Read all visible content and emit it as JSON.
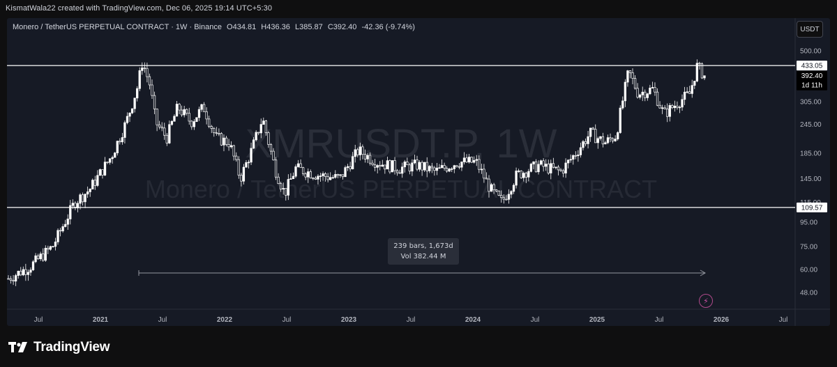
{
  "credit": "KismatWala22 created with TradingView.com, Dec 06, 2025 19:14 UTC+5:30",
  "header": {
    "symbol_desc": "Monero / TetherUS PERPETUAL CONTRACT · 1W · Binance",
    "o_label": "O",
    "open": "434.81",
    "h_label": "H",
    "high": "436.36",
    "l_label": "L",
    "low": "385.87",
    "c_label": "C",
    "close": "392.40",
    "change": "-42.36 (-9.74%)"
  },
  "currency_button": "USDT",
  "watermark": {
    "symbol": "XMRUSDT.P, 1W",
    "description": "Monero / TetherUS PERPETUAL CONTRACT"
  },
  "measure_tooltip": {
    "bars": "239 bars, 1,673d",
    "volume": "Vol 382.44 M"
  },
  "footer_brand": "TradingView",
  "colors": {
    "background": "#161a25",
    "candle": "#ffffff",
    "axis_text": "#b2b5be",
    "accent_bolt": "#d152a8"
  },
  "chart_data": {
    "type": "candlestick",
    "scale": "log",
    "ylim": [
      42,
      560
    ],
    "y_ticks": [
      {
        "label": "500.00",
        "value": 500
      },
      {
        "label": "305.00",
        "value": 305
      },
      {
        "label": "245.00",
        "value": 245
      },
      {
        "label": "185.00",
        "value": 185
      },
      {
        "label": "145.00",
        "value": 145
      },
      {
        "label": "115.00",
        "value": 115
      },
      {
        "label": "95.00",
        "value": 95
      },
      {
        "label": "75.00",
        "value": 75
      },
      {
        "label": "60.00",
        "value": 60
      },
      {
        "label": "48.00",
        "value": 48
      }
    ],
    "x_ticks": [
      {
        "label": "Jul",
        "bold": false
      },
      {
        "label": "2021",
        "bold": true
      },
      {
        "label": "Jul",
        "bold": false
      },
      {
        "label": "2022",
        "bold": true
      },
      {
        "label": "Jul",
        "bold": false
      },
      {
        "label": "2023",
        "bold": true
      },
      {
        "label": "Jul",
        "bold": false
      },
      {
        "label": "2024",
        "bold": true
      },
      {
        "label": "Jul",
        "bold": false
      },
      {
        "label": "2025",
        "bold": true
      },
      {
        "label": "Jul",
        "bold": false
      },
      {
        "label": "2026",
        "bold": true
      },
      {
        "label": "Jul",
        "bold": false
      }
    ],
    "horizontal_levels": [
      {
        "label": "433.05",
        "value": 433.05
      },
      {
        "label": "109.57",
        "value": 109.57
      }
    ],
    "last_price": {
      "label": "392.40",
      "value": 392.4,
      "countdown": "1d 11h"
    },
    "price_path_anchors": [
      {
        "t": 0.0,
        "p": 55
      },
      {
        "t": 0.03,
        "p": 62
      },
      {
        "t": 0.06,
        "p": 75
      },
      {
        "t": 0.09,
        "p": 115
      },
      {
        "t": 0.11,
        "p": 130
      },
      {
        "t": 0.14,
        "p": 180
      },
      {
        "t": 0.16,
        "p": 250
      },
      {
        "t": 0.175,
        "p": 350
      },
      {
        "t": 0.182,
        "p": 450
      },
      {
        "t": 0.192,
        "p": 360
      },
      {
        "t": 0.2,
        "p": 250
      },
      {
        "t": 0.215,
        "p": 215
      },
      {
        "t": 0.23,
        "p": 290
      },
      {
        "t": 0.248,
        "p": 250
      },
      {
        "t": 0.265,
        "p": 290
      },
      {
        "t": 0.282,
        "p": 215
      },
      {
        "t": 0.3,
        "p": 205
      },
      {
        "t": 0.315,
        "p": 145
      },
      {
        "t": 0.33,
        "p": 190
      },
      {
        "t": 0.345,
        "p": 260
      },
      {
        "t": 0.362,
        "p": 160
      },
      {
        "t": 0.375,
        "p": 125
      },
      {
        "t": 0.39,
        "p": 160
      },
      {
        "t": 0.42,
        "p": 150
      },
      {
        "t": 0.45,
        "p": 145
      },
      {
        "t": 0.475,
        "p": 190
      },
      {
        "t": 0.5,
        "p": 170
      },
      {
        "t": 0.53,
        "p": 160
      },
      {
        "t": 0.555,
        "p": 165
      },
      {
        "t": 0.58,
        "p": 155
      },
      {
        "t": 0.61,
        "p": 170
      },
      {
        "t": 0.635,
        "p": 170
      },
      {
        "t": 0.655,
        "p": 130
      },
      {
        "t": 0.67,
        "p": 115
      },
      {
        "t": 0.69,
        "p": 150
      },
      {
        "t": 0.72,
        "p": 165
      },
      {
        "t": 0.75,
        "p": 155
      },
      {
        "t": 0.77,
        "p": 185
      },
      {
        "t": 0.79,
        "p": 225
      },
      {
        "t": 0.81,
        "p": 205
      },
      {
        "t": 0.825,
        "p": 220
      },
      {
        "t": 0.835,
        "p": 320
      },
      {
        "t": 0.842,
        "p": 410
      },
      {
        "t": 0.855,
        "p": 330
      },
      {
        "t": 0.875,
        "p": 345
      },
      {
        "t": 0.89,
        "p": 270
      },
      {
        "t": 0.91,
        "p": 305
      },
      {
        "t": 0.925,
        "p": 330
      },
      {
        "t": 0.935,
        "p": 430
      },
      {
        "t": 0.945,
        "p": 392.4
      }
    ]
  }
}
